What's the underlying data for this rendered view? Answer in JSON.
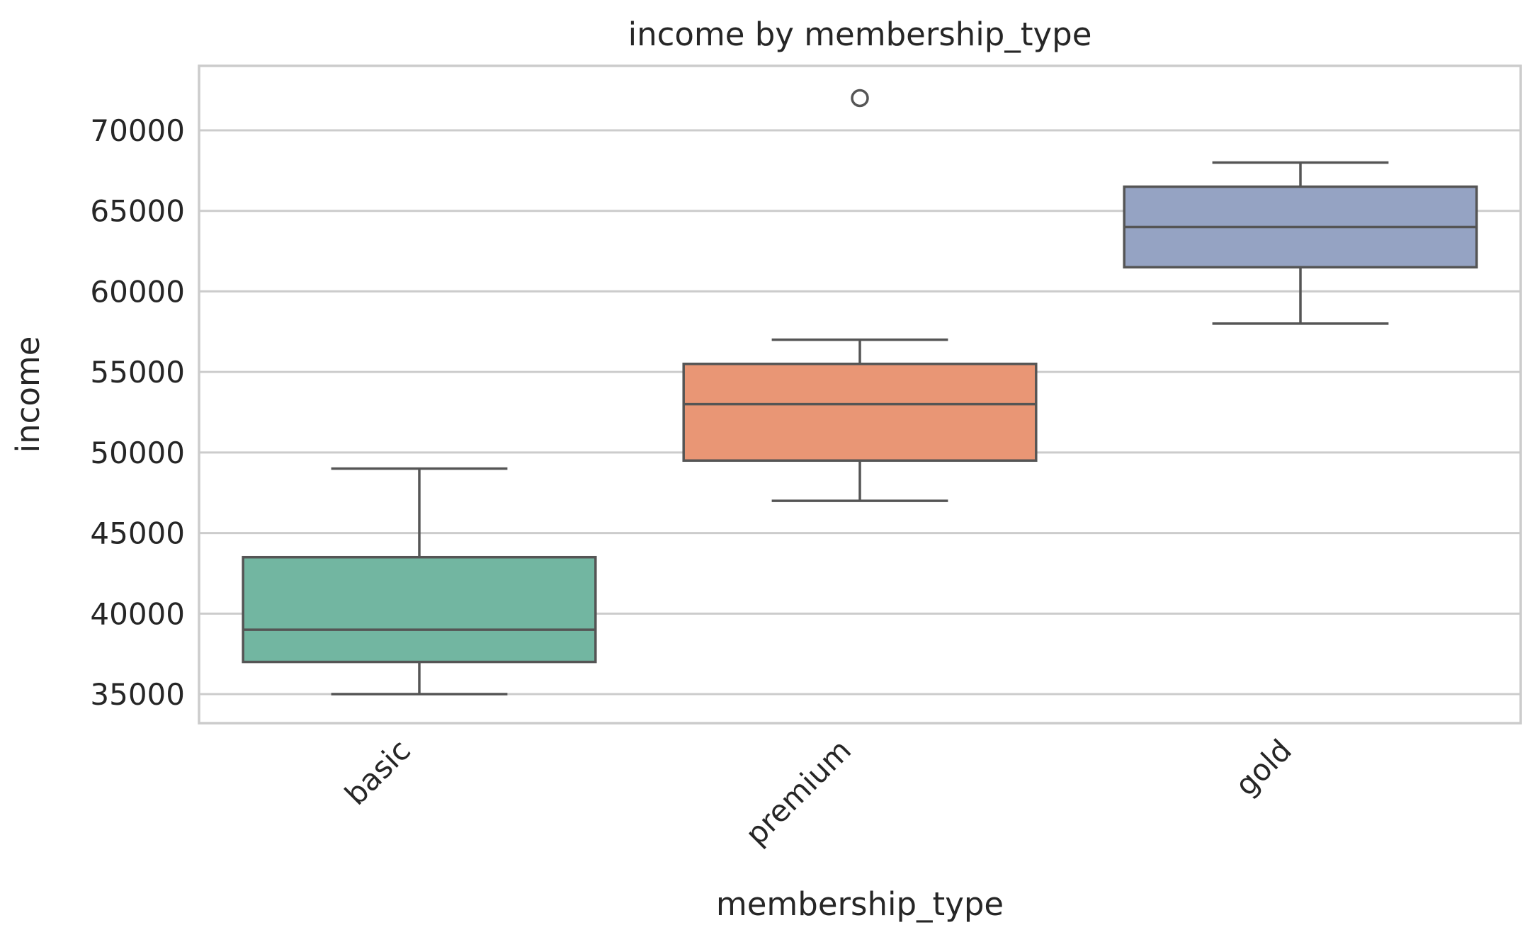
{
  "chart_data": {
    "type": "box",
    "title": "income by membership_type",
    "xlabel": "membership_type",
    "ylabel": "income",
    "ylim": [
      33200,
      74000
    ],
    "yticks": [
      35000,
      40000,
      45000,
      50000,
      55000,
      60000,
      65000,
      70000
    ],
    "ytick_labels": [
      "35000",
      "40000",
      "45000",
      "50000",
      "55000",
      "60000",
      "65000",
      "70000"
    ],
    "grid": "horizontal",
    "categories": [
      "basic",
      "premium",
      "gold"
    ],
    "boxes": [
      {
        "category": "basic",
        "whisker_low": 35000,
        "q1": 37000,
        "median": 39000,
        "q3": 43500,
        "whisker_high": 49000,
        "outliers": [],
        "color": "#72b6a1"
      },
      {
        "category": "premium",
        "whisker_low": 47000,
        "q1": 49500,
        "median": 53000,
        "q3": 55500,
        "whisker_high": 57000,
        "outliers": [
          72000
        ],
        "color": "#e99675"
      },
      {
        "category": "gold",
        "whisker_low": 58000,
        "q1": 61500,
        "median": 64000,
        "q3": 66500,
        "whisker_high": 68000,
        "outliers": [],
        "color": "#95a3c3"
      }
    ]
  }
}
